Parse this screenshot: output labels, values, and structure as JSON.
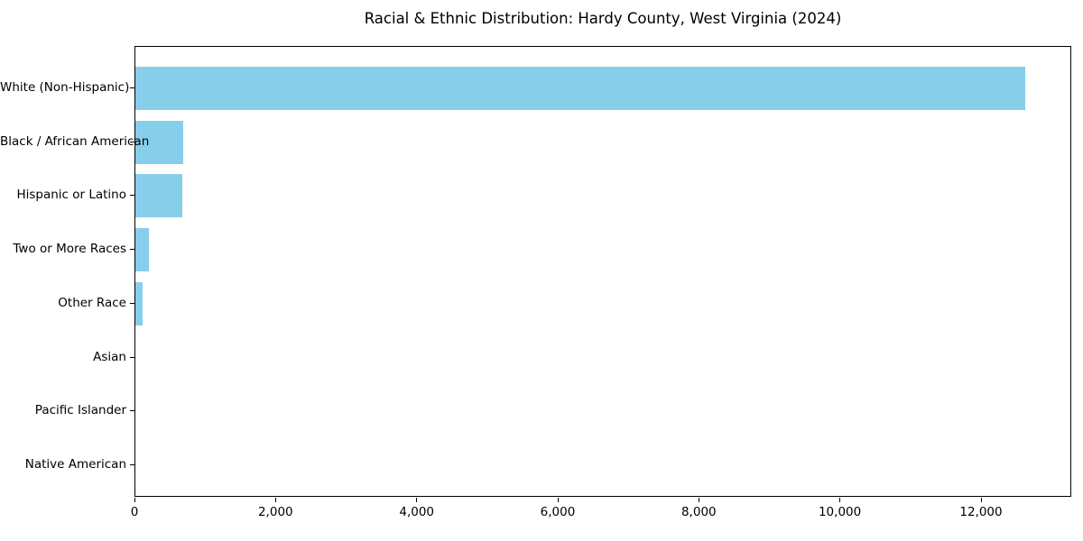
{
  "chart_data": {
    "type": "bar",
    "orientation": "horizontal",
    "title": "Racial & Ethnic Distribution: Hardy County, West Virginia (2024)",
    "categories": [
      "White (Non-Hispanic)",
      "Black / African American",
      "Hispanic or Latino",
      "Two or More Races",
      "Other Race",
      "Asian",
      "Pacific Islander",
      "Native American"
    ],
    "values": [
      12620,
      680,
      665,
      190,
      100,
      0,
      0,
      0
    ],
    "xlabel": "",
    "ylabel": "",
    "xlim": [
      0,
      13280
    ],
    "x_ticks": [
      {
        "value": 0,
        "label": "0"
      },
      {
        "value": 2000,
        "label": "2,000"
      },
      {
        "value": 4000,
        "label": "4,000"
      },
      {
        "value": 6000,
        "label": "6,000"
      },
      {
        "value": 8000,
        "label": "8,000"
      },
      {
        "value": 10000,
        "label": "10,000"
      },
      {
        "value": 12000,
        "label": "12,000"
      }
    ],
    "bar_color": "#87CEEB",
    "text_color": "#000000",
    "spine_color": "#000000",
    "grid": false,
    "legend": null
  }
}
